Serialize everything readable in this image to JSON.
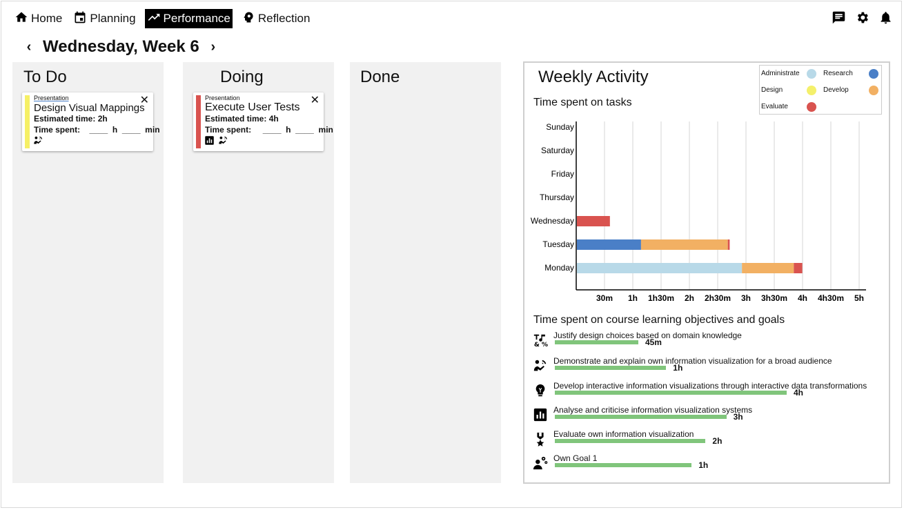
{
  "nav": {
    "items": [
      {
        "label": "Home",
        "icon": "home-icon"
      },
      {
        "label": "Planning",
        "icon": "calendar-icon"
      },
      {
        "label": "Performance",
        "icon": "trending-up-icon",
        "active": true
      },
      {
        "label": "Reflection",
        "icon": "head-gear-icon"
      }
    ],
    "right_icons": [
      "chat-icon",
      "settings-icon",
      "bell-icon"
    ]
  },
  "day": {
    "title": "Wednesday, Week 6",
    "prev": "‹",
    "next": "›"
  },
  "columns": {
    "todo": {
      "title": "To Do"
    },
    "doing": {
      "title": "Doing"
    },
    "done": {
      "title": "Done"
    }
  },
  "cards": {
    "todo_card": {
      "category": "Presentation",
      "title": "Design Visual Mappings",
      "estimated": "Estimated time: 2h",
      "spent": "Time spent:    ____  h  ____  min",
      "stripe_color": "#f6f066",
      "icons": [
        "presentation-hand-icon"
      ]
    },
    "doing_card": {
      "category": "Presentation",
      "title": "Execute User Tests",
      "estimated": "Estimated time: 4h",
      "spent": "Time spent:     ____  h  ____  min",
      "stripe_color": "#d9534f",
      "icons": [
        "bar-chart-icon",
        "presentation-hand-icon"
      ]
    }
  },
  "weekly": {
    "title": "Weekly Activity",
    "tasks_subtitle": "Time spent on tasks",
    "objectives_subtitle": "Time spent on course learning objectives and goals",
    "legend": [
      {
        "name": "Administrate",
        "color": "#b8d9e8"
      },
      {
        "name": "Research",
        "color": "#4a7fc7"
      },
      {
        "name": "Design",
        "color": "#f4f06b"
      },
      {
        "name": "Develop",
        "color": "#f2b063"
      },
      {
        "name": "Evaluate",
        "color": "#d9534f"
      }
    ]
  },
  "chart_data": {
    "type": "bar",
    "orientation": "horizontal",
    "stacked": true,
    "categories": [
      "Sunday",
      "Saturday",
      "Friday",
      "Thursday",
      "Wednesday",
      "Tuesday",
      "Monday"
    ],
    "x_ticks": [
      "30m",
      "1h",
      "1h30m",
      "2h",
      "2h30m",
      "3h",
      "3h30m",
      "4h",
      "4h30m",
      "5h"
    ],
    "xlim_minutes": [
      0,
      300
    ],
    "x_unit": "minutes",
    "grid": true,
    "legend_position": "top-right",
    "series": [
      {
        "name": "Administrate",
        "color": "#b8d9e8",
        "values": [
          0,
          0,
          0,
          0,
          0,
          0,
          175
        ]
      },
      {
        "name": "Research",
        "color": "#4a7fc7",
        "values": [
          0,
          0,
          0,
          0,
          0,
          68,
          0
        ]
      },
      {
        "name": "Design",
        "color": "#f4f06b",
        "values": [
          0,
          0,
          0,
          0,
          0,
          0,
          0
        ]
      },
      {
        "name": "Develop",
        "color": "#f2b063",
        "values": [
          0,
          0,
          0,
          0,
          0,
          92,
          55
        ]
      },
      {
        "name": "Evaluate",
        "color": "#d9534f",
        "values": [
          0,
          0,
          0,
          0,
          35,
          2,
          9
        ]
      }
    ]
  },
  "objectives": [
    {
      "label": "Justify design choices based on domain knowledge",
      "value": "45m",
      "fraction": 0.36,
      "icon": "music-symbols-icon"
    },
    {
      "label": "Demonstrate and explain own information visualization for a broad audience",
      "value": "1h",
      "fraction": 0.48,
      "icon": "presentation-hand-icon"
    },
    {
      "label": "Develop interactive information visualizations through interactive data transformations",
      "value": "4h",
      "fraction": 1.0,
      "icon": "lightbulb-icon"
    },
    {
      "label": "Analyse and criticise information visualization systems",
      "value": "3h",
      "fraction": 0.74,
      "icon": "bar-chart-icon"
    },
    {
      "label": "Evaluate own information visualization",
      "value": "2h",
      "fraction": 0.65,
      "icon": "medal-icon"
    },
    {
      "label": "Own Goal 1",
      "value": "1h",
      "fraction": 0.59,
      "icon": "person-gears-icon"
    }
  ]
}
